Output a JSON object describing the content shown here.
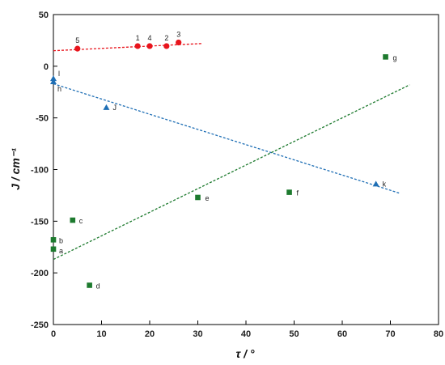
{
  "chart_data": {
    "type": "scatter",
    "xlabel": "τ / °",
    "ylabel": "J / cm⁻¹",
    "xlim": [
      0,
      80
    ],
    "ylim": [
      -250,
      50
    ],
    "x_ticks": [
      "0",
      "10",
      "20",
      "30",
      "40",
      "50",
      "60",
      "70",
      "80"
    ],
    "y_ticks": [
      "50",
      "0",
      "-50",
      "-100",
      "-150",
      "-200",
      "-250"
    ],
    "grid": false,
    "series": [
      {
        "color": "#e8141c",
        "marker": "circle",
        "points": [
          {
            "x": 5,
            "y": 17,
            "label": "5"
          },
          {
            "x": 17.5,
            "y": 19.5,
            "label": "1"
          },
          {
            "x": 20,
            "y": 19.5,
            "label": "4"
          },
          {
            "x": 23.5,
            "y": 19.5,
            "label": "2"
          },
          {
            "x": 26,
            "y": 23,
            "label": "3"
          }
        ],
        "trendline": {
          "x": [
            0,
            31
          ],
          "y": [
            15,
            22
          ],
          "style": "dashed"
        }
      },
      {
        "color": "#1f6fb5",
        "marker": "triangle",
        "points": [
          {
            "x": 0,
            "y": -12,
            "label": "l"
          },
          {
            "x": 0,
            "y": -15,
            "label": "h"
          },
          {
            "x": 11,
            "y": -40,
            "label": "J"
          },
          {
            "x": 67,
            "y": -114,
            "label": "k"
          }
        ],
        "trendline": {
          "x": [
            0,
            72
          ],
          "y": [
            -17,
            -123
          ],
          "style": "dashed"
        }
      },
      {
        "color": "#1d7a2e",
        "marker": "square",
        "points": [
          {
            "x": 0,
            "y": -177,
            "label": "a"
          },
          {
            "x": 0,
            "y": -168,
            "label": "b"
          },
          {
            "x": 4,
            "y": -149,
            "label": "c"
          },
          {
            "x": 7.5,
            "y": -212,
            "label": "d"
          },
          {
            "x": 30,
            "y": -127,
            "label": "e"
          },
          {
            "x": 49,
            "y": -122,
            "label": "f"
          },
          {
            "x": 69,
            "y": 9,
            "label": "g"
          }
        ],
        "trendline": {
          "x": [
            0,
            74
          ],
          "y": [
            -187,
            -18
          ],
          "style": "dashed"
        }
      }
    ]
  }
}
